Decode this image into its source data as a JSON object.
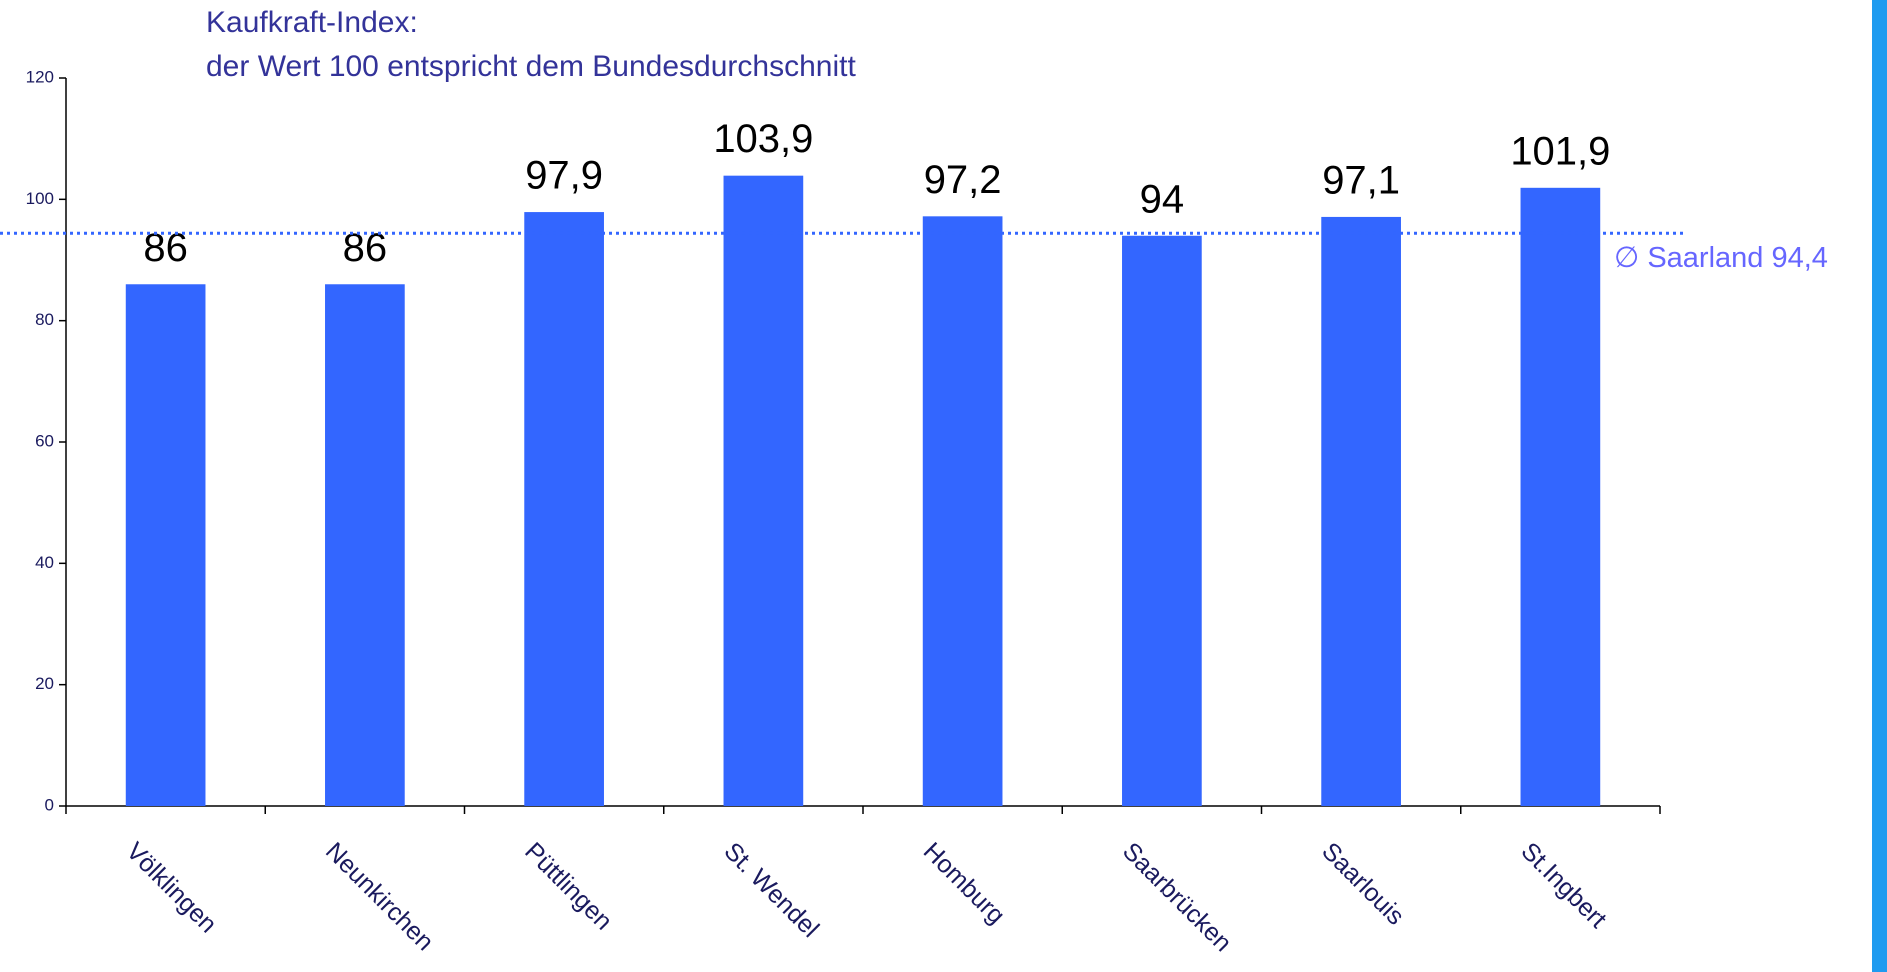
{
  "chart_data": {
    "type": "bar",
    "title": "Kaufkraft-Index:",
    "subtitle": "der Wert 100 entspricht dem Bundesdurchschnitt",
    "categories": [
      "Völklingen",
      "Neunkirchen",
      "Püttlingen",
      "St. Wendel",
      "Homburg",
      "Saarbrücken",
      "Saarlouis",
      "St.Ingbert"
    ],
    "values": [
      86,
      86,
      97.9,
      103.9,
      97.2,
      94,
      97.1,
      101.9
    ],
    "value_labels": [
      "86",
      "86",
      "97,9",
      "103,9",
      "97,2",
      "94",
      "97,1",
      "101,9"
    ],
    "color": "#3366ff",
    "ylim": [
      0,
      120
    ],
    "yticks": [
      0,
      20,
      40,
      60,
      80,
      100,
      120
    ],
    "reference_line": {
      "value": 94.4,
      "label": "∅ Saarland 94,4",
      "color": "#3366ff"
    }
  }
}
